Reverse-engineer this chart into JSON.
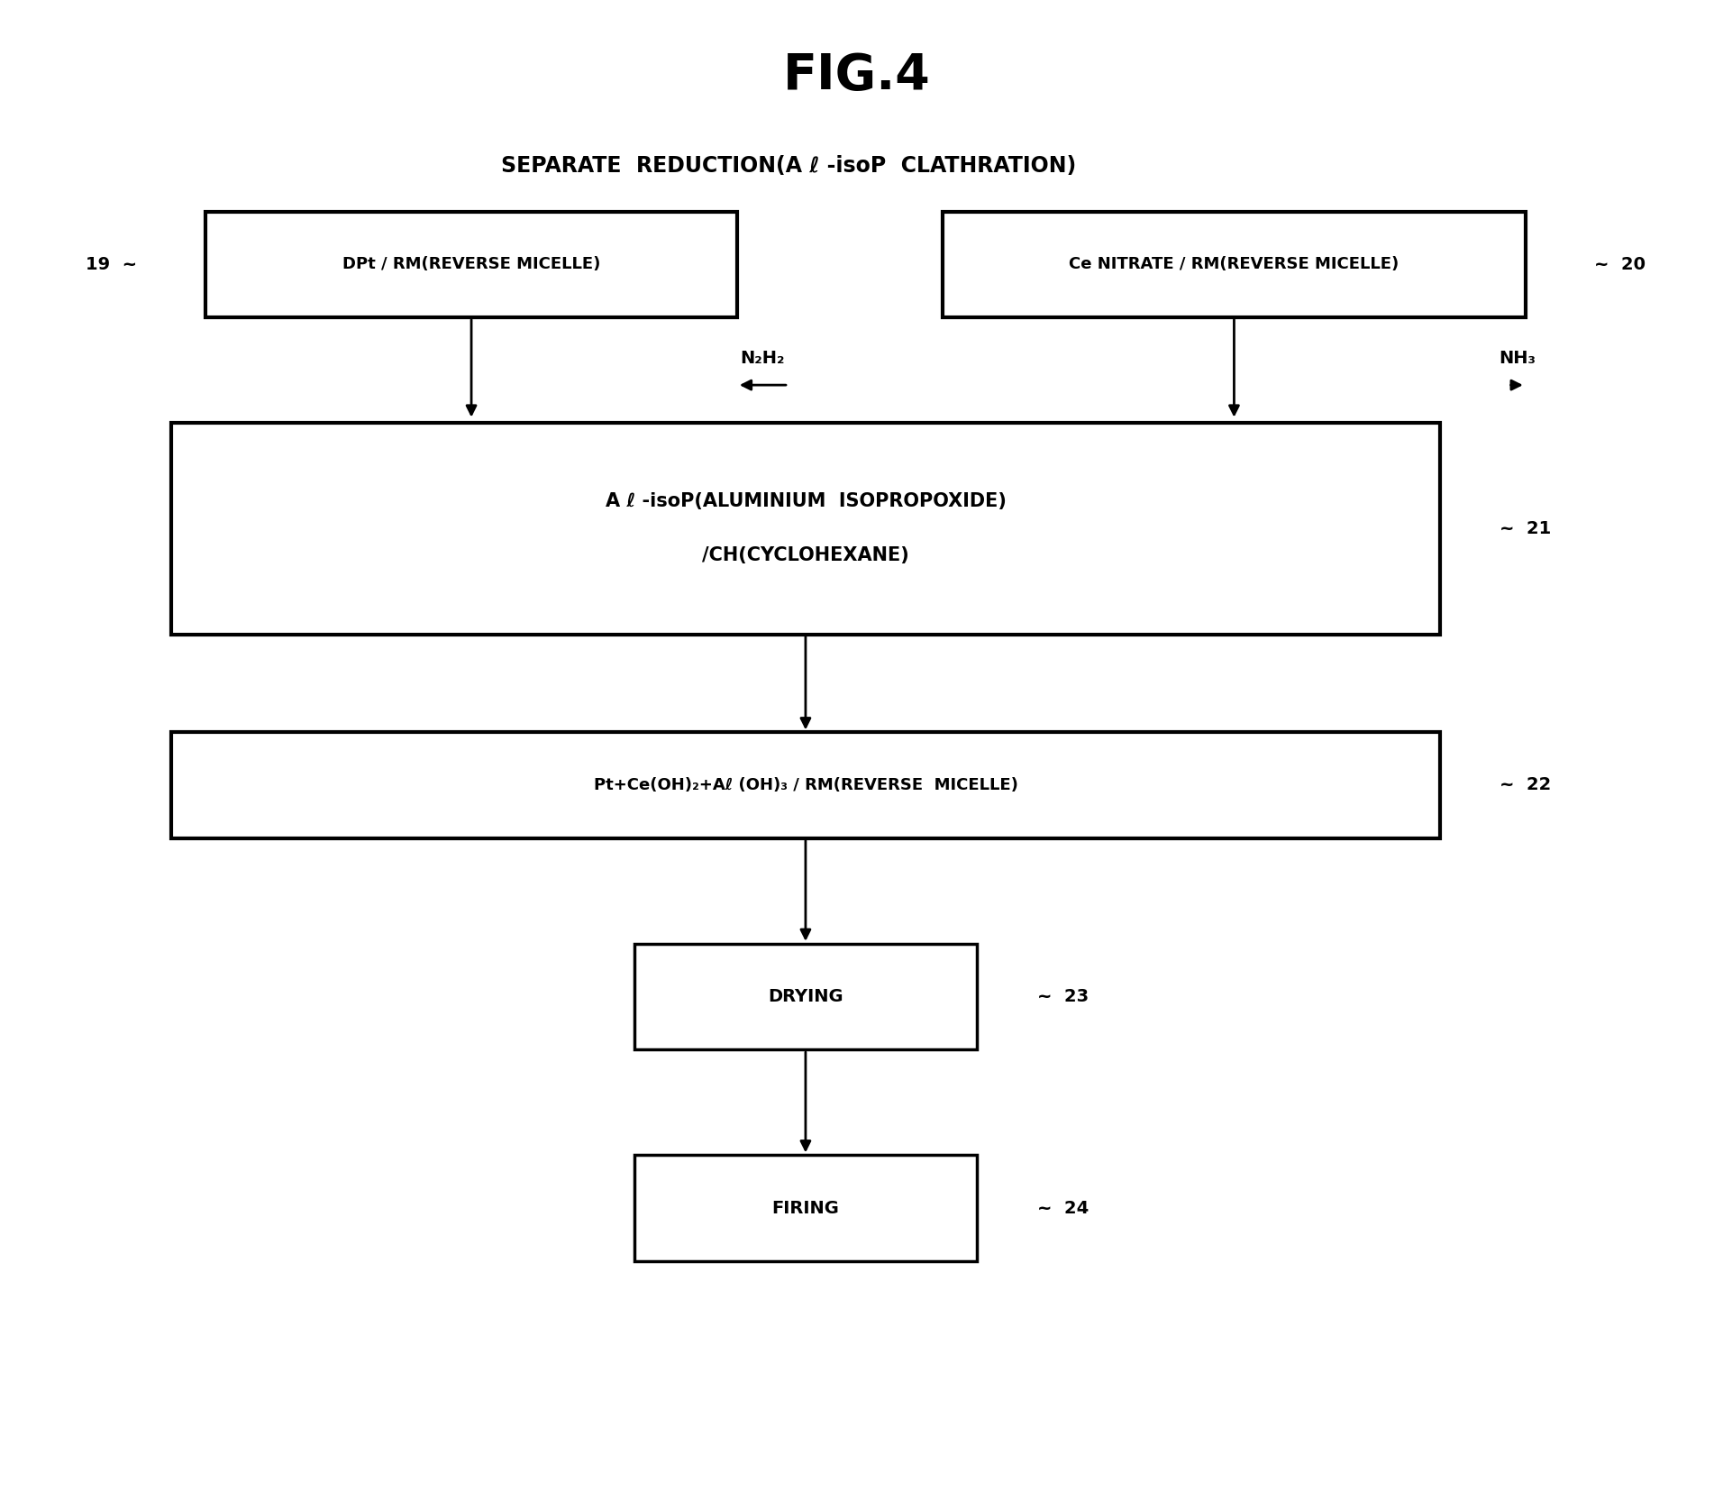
{
  "title": "FIG.4",
  "subtitle": "SEPARATE  REDUCTION(A ℓ -isoP  CLATHRATION)",
  "bg_color": "#ffffff",
  "box19_text": "DPt / RM(REVERSE MICELLE)",
  "box19_label": "19",
  "box20_text": "Ce NITRATE / RM(REVERSE MICELLE)",
  "box20_label": "20",
  "box21_line1": "A ℓ -isoP(ALUMINIUM  ISOPROPOXIDE)",
  "box21_line2": "/CH(CYCLOHEXANE)",
  "box21_label": "21",
  "box22_text": "Pt+Ce(OH)₂+Aℓ (OH)₃ / RM(REVERSE  MICELLE)",
  "box22_label": "22",
  "box23_text": "DRYING",
  "box23_label": "23",
  "box24_text": "FIRING",
  "box24_label": "24",
  "n2h2_label": "N₂H₂",
  "nh3_label": "NH₃",
  "font_color": "#000000",
  "box_edge_color": "#000000",
  "box_face_color": "#ffffff",
  "line_color": "#000000",
  "fig_width": 19.02,
  "fig_height": 16.75,
  "dpi": 100
}
